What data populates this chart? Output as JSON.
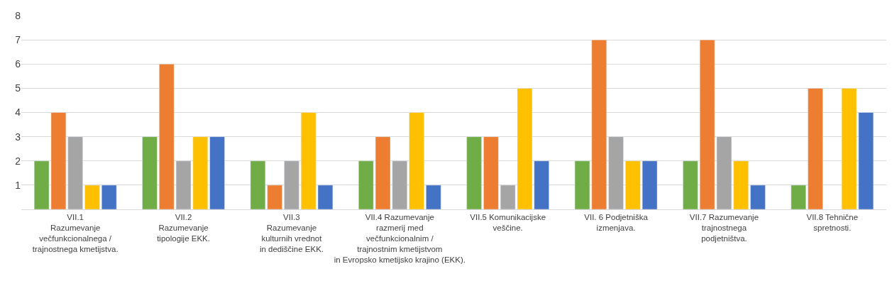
{
  "chart_data": {
    "type": "bar",
    "categories": [
      "VII.1\nRazumevanje\nvečfunkcionalnega /\ntrajnostnega kmetijstva.",
      "VII.2\nRazumevanje\ntipologije EKK.",
      "VII.3\nRazumevanje\nkulturnih vrednot\nin dediščine EKK.",
      "VII.4 Razumevanje\nrazmerij med\nvečfunkcionalnim /\ntrajnostnim kmetijstvom\nin Evropsko kmetijsko krajino (EKK).",
      "VII.5 Komunikacijske\nveščine.",
      "VII. 6 Podjetniška\nizmenjava.",
      "VII.7 Razumevanje\ntrajnostnega\npodjetništva.",
      "VII.8 Tehnične\nspretnosti."
    ],
    "series": [
      {
        "color": "#70ad47",
        "values": [
          2,
          3,
          2,
          2,
          3,
          2,
          2,
          1
        ]
      },
      {
        "color": "#ed7d31",
        "values": [
          4,
          6,
          1,
          3,
          3,
          7,
          7,
          5
        ]
      },
      {
        "color": "#a5a5a5",
        "values": [
          3,
          2,
          2,
          2,
          1,
          3,
          3,
          null
        ]
      },
      {
        "color": "#ffc000",
        "values": [
          1,
          3,
          4,
          4,
          5,
          2,
          2,
          5
        ]
      },
      {
        "color": "#4472c4",
        "values": [
          1,
          3,
          1,
          1,
          2,
          2,
          1,
          4
        ]
      }
    ],
    "ylim": [
      0,
      8
    ],
    "yticks": [
      {
        "value": 0,
        "label": null
      },
      1,
      2,
      3,
      4,
      5,
      6,
      7,
      8
    ],
    "grid": "y"
  }
}
